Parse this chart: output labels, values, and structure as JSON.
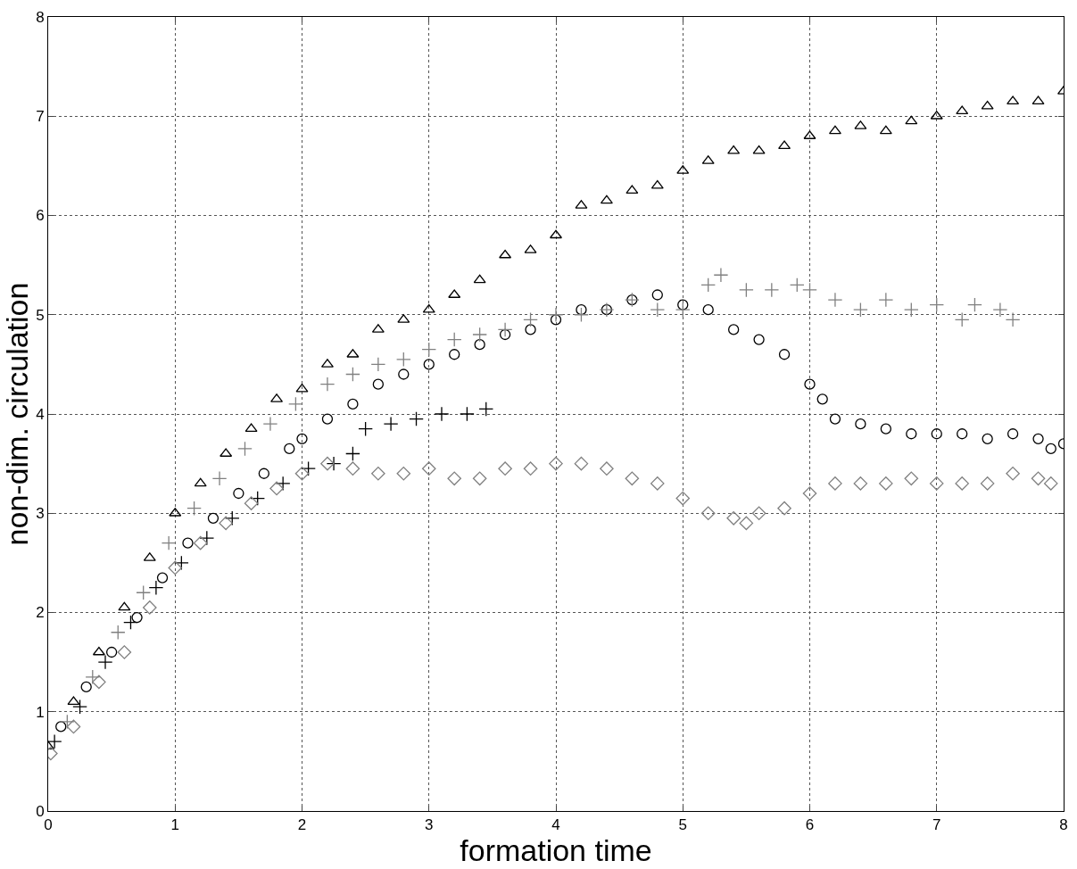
{
  "chart_data": {
    "type": "scatter",
    "xlabel": "formation time",
    "ylabel": "non-dim. circulation",
    "xlim": [
      0,
      8
    ],
    "ylim": [
      0,
      8
    ],
    "xticks": [
      0,
      1,
      2,
      3,
      4,
      5,
      6,
      7,
      8
    ],
    "yticks": [
      0,
      1,
      2,
      3,
      4,
      5,
      6,
      7,
      8
    ],
    "grid": true,
    "series": [
      {
        "color": "#000000",
        "marker": "triangle",
        "x": [
          0,
          0.2,
          0.4,
          0.6,
          0.8,
          1.0,
          1.2,
          1.4,
          1.6,
          1.8,
          2.0,
          2.2,
          2.4,
          2.6,
          2.8,
          3.0,
          3.2,
          3.4,
          3.6,
          3.8,
          4.0,
          4.2,
          4.4,
          4.6,
          4.8,
          5.0,
          5.2,
          5.4,
          5.6,
          5.8,
          6.0,
          6.2,
          6.4,
          6.6,
          6.8,
          7.0,
          7.2,
          7.4,
          7.6,
          7.8,
          8.0
        ],
        "values": [
          0.65,
          1.1,
          1.6,
          2.05,
          2.55,
          3.0,
          3.3,
          3.6,
          3.85,
          4.15,
          4.25,
          4.5,
          4.6,
          4.85,
          4.95,
          5.05,
          5.2,
          5.35,
          5.6,
          5.65,
          5.8,
          6.1,
          6.15,
          6.25,
          6.3,
          6.45,
          6.55,
          6.65,
          6.65,
          6.7,
          6.8,
          6.85,
          6.9,
          6.85,
          6.95,
          7.0,
          7.05,
          7.1,
          7.15,
          7.15,
          7.25
        ]
      },
      {
        "color": "#000000",
        "marker": "circle",
        "x": [
          0.1,
          0.3,
          0.5,
          0.7,
          0.9,
          1.1,
          1.3,
          1.5,
          1.7,
          1.9,
          2.0,
          2.2,
          2.4,
          2.6,
          2.8,
          3.0,
          3.2,
          3.4,
          3.6,
          3.8,
          4.0,
          4.2,
          4.4,
          4.6,
          4.8,
          5.0,
          5.2,
          5.4,
          5.6,
          5.8,
          6.0,
          6.1,
          6.2,
          6.4,
          6.6,
          6.8,
          7.0,
          7.2,
          7.4,
          7.6,
          7.8,
          7.9,
          8.0
        ],
        "values": [
          0.85,
          1.25,
          1.6,
          1.95,
          2.35,
          2.7,
          2.95,
          3.2,
          3.4,
          3.65,
          3.75,
          3.95,
          4.1,
          4.3,
          4.4,
          4.5,
          4.6,
          4.7,
          4.8,
          4.85,
          4.95,
          5.05,
          5.05,
          5.15,
          5.2,
          5.1,
          5.05,
          4.85,
          4.75,
          4.6,
          4.3,
          4.15,
          3.95,
          3.9,
          3.85,
          3.8,
          3.8,
          3.8,
          3.75,
          3.8,
          3.75,
          3.65,
          3.7
        ]
      },
      {
        "color": "#808080",
        "marker": "cross",
        "x": [
          0.15,
          0.35,
          0.55,
          0.75,
          0.95,
          1.15,
          1.35,
          1.55,
          1.75,
          1.95,
          2.2,
          2.4,
          2.6,
          2.8,
          3.0,
          3.2,
          3.4,
          3.6,
          3.8,
          4.0,
          4.2,
          4.4,
          4.6,
          4.8,
          5.0,
          5.2,
          5.3,
          5.5,
          5.7,
          5.9,
          6.0,
          6.2,
          6.4,
          6.6,
          6.8,
          7.0,
          7.2,
          7.3,
          7.5,
          7.6
        ],
        "values": [
          0.9,
          1.35,
          1.8,
          2.2,
          2.7,
          3.05,
          3.35,
          3.65,
          3.9,
          4.1,
          4.3,
          4.4,
          4.5,
          4.55,
          4.65,
          4.75,
          4.8,
          4.85,
          4.95,
          5.0,
          5.0,
          5.05,
          5.15,
          5.05,
          5.05,
          5.3,
          5.4,
          5.25,
          5.25,
          5.3,
          5.25,
          5.15,
          5.05,
          5.15,
          5.05,
          5.1,
          4.95,
          5.1,
          5.05,
          4.95
        ]
      },
      {
        "color": "#000000",
        "marker": "cross",
        "x": [
          0.05,
          0.25,
          0.45,
          0.65,
          0.85,
          1.05,
          1.25,
          1.45,
          1.65,
          1.85,
          2.05,
          2.25,
          2.4,
          2.5,
          2.7,
          2.9,
          3.1,
          3.3,
          3.45
        ],
        "values": [
          0.7,
          1.05,
          1.5,
          1.9,
          2.25,
          2.5,
          2.75,
          2.95,
          3.15,
          3.3,
          3.45,
          3.5,
          3.6,
          3.85,
          3.9,
          3.95,
          4.0,
          4.0,
          4.05
        ]
      },
      {
        "color": "#808080",
        "marker": "diamond",
        "x": [
          0.02,
          0.2,
          0.4,
          0.6,
          0.8,
          1.0,
          1.2,
          1.4,
          1.6,
          1.8,
          2.0,
          2.2,
          2.4,
          2.6,
          2.8,
          3.0,
          3.2,
          3.4,
          3.6,
          3.8,
          4.0,
          4.2,
          4.4,
          4.6,
          4.8,
          5.0,
          5.2,
          5.4,
          5.5,
          5.6,
          5.8,
          6.0,
          6.2,
          6.4,
          6.6,
          6.8,
          7.0,
          7.2,
          7.4,
          7.6,
          7.8,
          7.9
        ],
        "values": [
          0.58,
          0.85,
          1.3,
          1.6,
          2.05,
          2.45,
          2.7,
          2.9,
          3.1,
          3.25,
          3.4,
          3.5,
          3.45,
          3.4,
          3.4,
          3.45,
          3.35,
          3.35,
          3.45,
          3.45,
          3.5,
          3.5,
          3.45,
          3.35,
          3.3,
          3.15,
          3.0,
          2.95,
          2.9,
          3.0,
          3.05,
          3.2,
          3.3,
          3.3,
          3.3,
          3.35,
          3.3,
          3.3,
          3.3,
          3.4,
          3.35,
          3.3
        ]
      }
    ]
  }
}
